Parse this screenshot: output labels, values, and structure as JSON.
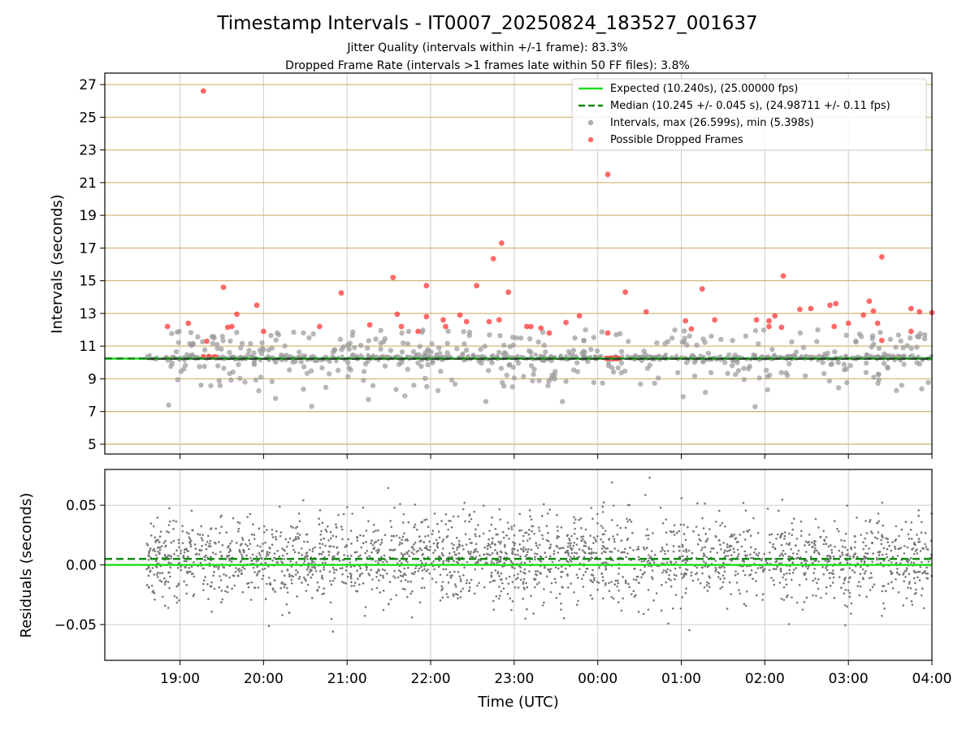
{
  "chart_data": {
    "title": "Timestamp Intervals - IT0007_20250824_183527_001637",
    "subtitles": [
      "Jitter Quality (intervals within +/-1 frame): 83.3%",
      "Dropped Frame Rate (intervals >1 frames late within 50 FF files): 3.8%"
    ],
    "xlabel": "Time (UTC)",
    "x_ticks": [
      "19:00",
      "20:00",
      "21:00",
      "22:00",
      "23:00",
      "00:00",
      "01:00",
      "02:00",
      "03:00",
      "04:00"
    ],
    "x_range_hours": [
      18.1,
      28.0
    ],
    "colors": {
      "expected": "#22dd22",
      "median": "#118811",
      "intervals": "#999999",
      "dropped": "#ff4444",
      "residuals": "#777777",
      "hgrid": "#d4b87a",
      "vgrid": "#cccccc"
    },
    "panels": [
      {
        "id": "intervals",
        "type": "scatter",
        "ylabel": "Intervals (seconds)",
        "ylim": [
          4.4,
          27.7
        ],
        "y_ticks": [
          5,
          7,
          9,
          11,
          13,
          15,
          17,
          19,
          21,
          23,
          25,
          27
        ],
        "y_tick_labels": [
          "5",
          "7",
          "9",
          "11",
          "13",
          "15",
          "17",
          "19",
          "21",
          "23",
          "25",
          "27"
        ],
        "expected_value": 10.24,
        "median_value": 10.245,
        "max_interval": 26.599,
        "min_interval": 5.398,
        "legend": {
          "placement": "upper-right",
          "entries": [
            {
              "label": "Expected (10.240s), (25.00000 fps)",
              "style": "solid-line"
            },
            {
              "label": "Median (10.245 +/- 0.045 s), (24.98711 +/- 0.11 fps)",
              "style": "dashed-line"
            },
            {
              "label": "Intervals, max (26.599s), min (5.398s)",
              "style": "gray-dot"
            },
            {
              "label": "Possible Dropped Frames",
              "style": "red-dot"
            }
          ]
        },
        "series": [
          {
            "name": "Possible Dropped Frames",
            "points": [
              [
                19.28,
                26.6
              ],
              [
                24.12,
                21.5
              ],
              [
                22.85,
                17.3
              ],
              [
                22.75,
                16.35
              ],
              [
                27.4,
                16.45
              ],
              [
                21.55,
                15.2
              ],
              [
                26.22,
                15.3
              ],
              [
                19.52,
                14.6
              ],
              [
                21.95,
                14.7
              ],
              [
                22.55,
                14.7
              ],
              [
                25.25,
                14.5
              ],
              [
                20.93,
                14.25
              ],
              [
                22.93,
                14.3
              ],
              [
                24.33,
                14.3
              ],
              [
                19.92,
                13.5
              ],
              [
                26.85,
                13.6
              ],
              [
                27.25,
                13.75
              ],
              [
                27.75,
                13.3
              ],
              [
                27.85,
                13.1
              ],
              [
                28.0,
                13.05
              ],
              [
                24.58,
                13.1
              ],
              [
                27.3,
                13.15
              ],
              [
                27.18,
                12.9
              ],
              [
                26.55,
                13.3
              ],
              [
                26.78,
                13.5
              ],
              [
                19.68,
                12.95
              ],
              [
                21.6,
                12.95
              ],
              [
                22.35,
                12.9
              ],
              [
                22.15,
                12.6
              ],
              [
                22.43,
                12.5
              ],
              [
                25.05,
                12.55
              ],
              [
                25.4,
                12.6
              ],
              [
                25.9,
                12.6
              ],
              [
                26.05,
                12.55
              ],
              [
                26.12,
                12.85
              ],
              [
                26.42,
                13.25
              ],
              [
                21.95,
                12.8
              ],
              [
                23.78,
                12.85
              ],
              [
                19.1,
                12.4
              ],
              [
                18.85,
                12.2
              ],
              [
                19.62,
                12.2
              ],
              [
                19.57,
                12.15
              ],
              [
                20.67,
                12.2
              ],
              [
                21.27,
                12.3
              ],
              [
                21.65,
                12.2
              ],
              [
                22.18,
                12.2
              ],
              [
                22.7,
                12.5
              ],
              [
                22.82,
                12.6
              ],
              [
                23.15,
                12.2
              ],
              [
                23.2,
                12.2
              ],
              [
                23.32,
                12.1
              ],
              [
                23.62,
                12.45
              ],
              [
                26.05,
                12.2
              ],
              [
                26.2,
                12.15
              ],
              [
                26.83,
                12.2
              ],
              [
                27.0,
                12.4
              ],
              [
                27.35,
                12.4
              ],
              [
                20.0,
                11.9
              ],
              [
                21.85,
                11.9
              ],
              [
                23.42,
                11.8
              ],
              [
                24.12,
                11.8
              ],
              [
                25.12,
                12.05
              ],
              [
                27.75,
                11.9
              ],
              [
                19.32,
                11.3
              ],
              [
                27.4,
                11.35
              ],
              [
                19.28,
                10.35
              ],
              [
                19.35,
                10.35
              ],
              [
                19.42,
                10.35
              ],
              [
                24.1,
                10.25
              ],
              [
                24.13,
                10.25
              ],
              [
                24.16,
                10.25
              ],
              [
                24.19,
                10.25
              ],
              [
                24.22,
                10.25
              ],
              [
                24.25,
                10.25
              ]
            ]
          }
        ]
      },
      {
        "id": "residuals",
        "type": "scatter",
        "ylabel": "Residuals (seconds)",
        "ylim": [
          -0.08,
          0.08
        ],
        "y_ticks": [
          -0.05,
          0.0,
          0.05
        ],
        "y_tick_labels": [
          "−0.05",
          "0.00",
          "0.05"
        ],
        "expected_value": 0.0,
        "median_value": 0.005,
        "residual_spread": 0.03,
        "residual_outlier_range": [
          -0.078,
          0.078
        ]
      }
    ]
  }
}
